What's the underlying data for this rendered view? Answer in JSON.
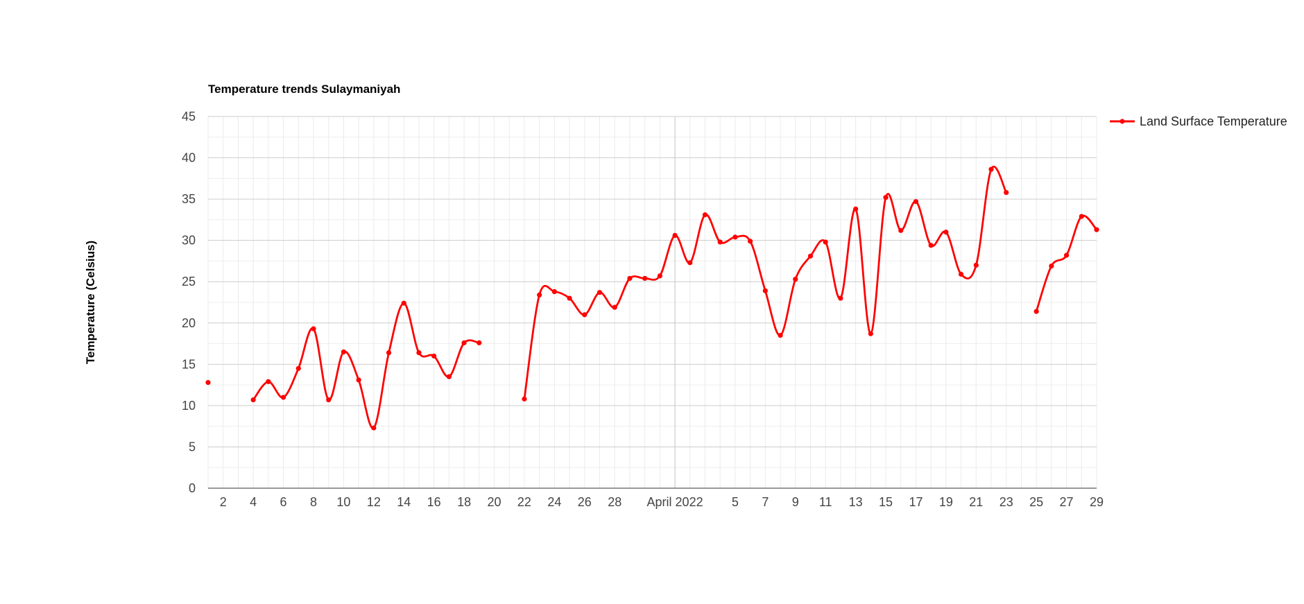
{
  "chart_data": {
    "type": "line",
    "title": "Temperature trends Sulaymaniyah",
    "ylabel": "Temperature (Celsius)",
    "xlabel": "",
    "ylim": [
      0,
      45
    ],
    "yticks": [
      0,
      5,
      10,
      15,
      20,
      25,
      30,
      35,
      40,
      45
    ],
    "x_range": [
      "2022-03-01",
      "2022-04-29"
    ],
    "x_ticks": [
      {
        "date": "2022-03-02",
        "label": "2"
      },
      {
        "date": "2022-03-04",
        "label": "4"
      },
      {
        "date": "2022-03-06",
        "label": "6"
      },
      {
        "date": "2022-03-08",
        "label": "8"
      },
      {
        "date": "2022-03-10",
        "label": "10"
      },
      {
        "date": "2022-03-12",
        "label": "12"
      },
      {
        "date": "2022-03-14",
        "label": "14"
      },
      {
        "date": "2022-03-16",
        "label": "16"
      },
      {
        "date": "2022-03-18",
        "label": "18"
      },
      {
        "date": "2022-03-20",
        "label": "20"
      },
      {
        "date": "2022-03-22",
        "label": "22"
      },
      {
        "date": "2022-03-24",
        "label": "24"
      },
      {
        "date": "2022-03-26",
        "label": "26"
      },
      {
        "date": "2022-03-28",
        "label": "28"
      },
      {
        "date": "2022-04-01",
        "label": "April 2022"
      },
      {
        "date": "2022-04-05",
        "label": "5"
      },
      {
        "date": "2022-04-07",
        "label": "7"
      },
      {
        "date": "2022-04-09",
        "label": "9"
      },
      {
        "date": "2022-04-11",
        "label": "11"
      },
      {
        "date": "2022-04-13",
        "label": "13"
      },
      {
        "date": "2022-04-15",
        "label": "15"
      },
      {
        "date": "2022-04-17",
        "label": "17"
      },
      {
        "date": "2022-04-19",
        "label": "19"
      },
      {
        "date": "2022-04-21",
        "label": "21"
      },
      {
        "date": "2022-04-23",
        "label": "23"
      },
      {
        "date": "2022-04-25",
        "label": "25"
      },
      {
        "date": "2022-04-27",
        "label": "27"
      },
      {
        "date": "2022-04-29",
        "label": "29"
      }
    ],
    "grid": true,
    "legend_position": "right",
    "series": [
      {
        "name": "Land Surface Temperature",
        "color": "#ff0000",
        "points": [
          {
            "x": "2022-03-01",
            "y": 12.8
          },
          {
            "x": "2022-03-02",
            "y": null
          },
          {
            "x": "2022-03-03",
            "y": null
          },
          {
            "x": "2022-03-04",
            "y": 10.7
          },
          {
            "x": "2022-03-05",
            "y": 12.9
          },
          {
            "x": "2022-03-06",
            "y": 11.0
          },
          {
            "x": "2022-03-07",
            "y": 14.5
          },
          {
            "x": "2022-03-08",
            "y": 19.3
          },
          {
            "x": "2022-03-09",
            "y": 10.7
          },
          {
            "x": "2022-03-10",
            "y": 16.5
          },
          {
            "x": "2022-03-11",
            "y": 13.1
          },
          {
            "x": "2022-03-12",
            "y": 7.3
          },
          {
            "x": "2022-03-13",
            "y": 16.4
          },
          {
            "x": "2022-03-14",
            "y": 22.4
          },
          {
            "x": "2022-03-15",
            "y": 16.4
          },
          {
            "x": "2022-03-16",
            "y": 16.0
          },
          {
            "x": "2022-03-17",
            "y": 13.5
          },
          {
            "x": "2022-03-18",
            "y": 17.6
          },
          {
            "x": "2022-03-19",
            "y": 17.6
          },
          {
            "x": "2022-03-20",
            "y": null
          },
          {
            "x": "2022-03-21",
            "y": null
          },
          {
            "x": "2022-03-22",
            "y": 10.8
          },
          {
            "x": "2022-03-23",
            "y": 23.4
          },
          {
            "x": "2022-03-24",
            "y": 23.8
          },
          {
            "x": "2022-03-25",
            "y": 23.0
          },
          {
            "x": "2022-03-26",
            "y": 21.0
          },
          {
            "x": "2022-03-27",
            "y": 23.7
          },
          {
            "x": "2022-03-28",
            "y": 21.9
          },
          {
            "x": "2022-03-29",
            "y": 25.4
          },
          {
            "x": "2022-03-30",
            "y": 25.4
          },
          {
            "x": "2022-03-31",
            "y": 25.7
          },
          {
            "x": "2022-04-01",
            "y": 30.6
          },
          {
            "x": "2022-04-02",
            "y": 27.3
          },
          {
            "x": "2022-04-03",
            "y": 33.1
          },
          {
            "x": "2022-04-04",
            "y": 29.8
          },
          {
            "x": "2022-04-05",
            "y": 30.4
          },
          {
            "x": "2022-04-06",
            "y": 29.9
          },
          {
            "x": "2022-04-07",
            "y": 23.9
          },
          {
            "x": "2022-04-08",
            "y": 18.5
          },
          {
            "x": "2022-04-09",
            "y": 25.3
          },
          {
            "x": "2022-04-10",
            "y": 28.1
          },
          {
            "x": "2022-04-11",
            "y": 29.8
          },
          {
            "x": "2022-04-12",
            "y": 23.0
          },
          {
            "x": "2022-04-13",
            "y": 33.8
          },
          {
            "x": "2022-04-14",
            "y": 18.7
          },
          {
            "x": "2022-04-15",
            "y": 35.2
          },
          {
            "x": "2022-04-16",
            "y": 31.2
          },
          {
            "x": "2022-04-17",
            "y": 34.7
          },
          {
            "x": "2022-04-18",
            "y": 29.4
          },
          {
            "x": "2022-04-19",
            "y": 31.0
          },
          {
            "x": "2022-04-20",
            "y": 25.9
          },
          {
            "x": "2022-04-21",
            "y": 27.0
          },
          {
            "x": "2022-04-22",
            "y": 38.6
          },
          {
            "x": "2022-04-23",
            "y": 35.8
          },
          {
            "x": "2022-04-24",
            "y": null
          },
          {
            "x": "2022-04-25",
            "y": 21.4
          },
          {
            "x": "2022-04-26",
            "y": 26.9
          },
          {
            "x": "2022-04-27",
            "y": 28.2
          },
          {
            "x": "2022-04-28",
            "y": 32.9
          },
          {
            "x": "2022-04-29",
            "y": 31.3
          }
        ]
      }
    ]
  }
}
